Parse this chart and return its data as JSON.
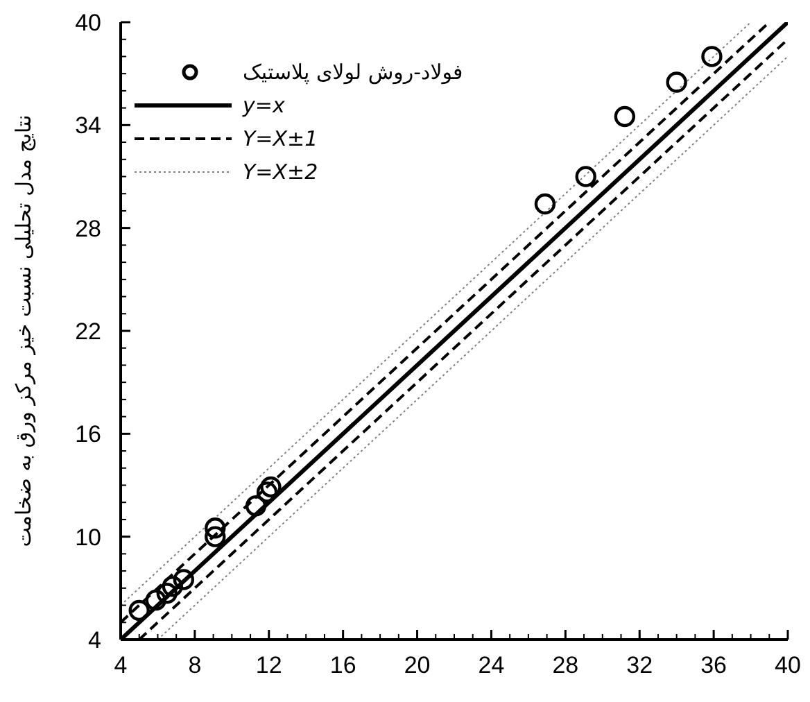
{
  "chart_data": {
    "type": "scatter",
    "ylabel": "نتایج مدل تحلیلی نسبت خیز مرکز ورق به ضخامت",
    "xlim": [
      4,
      40
    ],
    "ylim": [
      4,
      40
    ],
    "xticks": [
      4,
      8,
      12,
      16,
      20,
      24,
      28,
      32,
      36,
      40
    ],
    "yticks": [
      4,
      10,
      16,
      22,
      28,
      34,
      40
    ],
    "grid": false,
    "legend": "top left",
    "series": [
      {
        "name": "فولاد-روش لولای پلاستیک",
        "marker": "circle",
        "color": "#000000",
        "x": [
          5.0,
          5.9,
          6.5,
          6.8,
          7.4,
          9.1,
          9.1,
          11.3,
          11.9,
          12.1,
          26.9,
          29.1,
          31.2,
          34.0,
          35.9
        ],
        "values": [
          5.7,
          6.3,
          6.7,
          7.1,
          7.5,
          10.0,
          10.5,
          11.8,
          12.6,
          12.9,
          29.4,
          31.0,
          34.5,
          36.5,
          38.0
        ]
      },
      {
        "name": "y=x",
        "type": "line",
        "line_style": "solid",
        "color": "#000000",
        "x": [
          4,
          40
        ],
        "values": [
          4,
          40
        ]
      },
      {
        "name": "Y=X±1",
        "type": "line",
        "line_style": "dashed",
        "color": "#000000",
        "x": [
          4,
          39
        ],
        "values": [
          5,
          40
        ]
      },
      {
        "name": null,
        "type": "line",
        "line_style": "dashed",
        "color": "#000000",
        "x": [
          5,
          40
        ],
        "values": [
          4,
          39
        ]
      },
      {
        "name": "Y=X±2",
        "type": "line",
        "line_style": "dotted",
        "color": "#808080",
        "x": [
          4,
          38
        ],
        "values": [
          6,
          40
        ]
      },
      {
        "name": null,
        "type": "line",
        "line_style": "dotted",
        "color": "#808080",
        "x": [
          6,
          40
        ],
        "values": [
          4,
          38
        ]
      }
    ]
  }
}
